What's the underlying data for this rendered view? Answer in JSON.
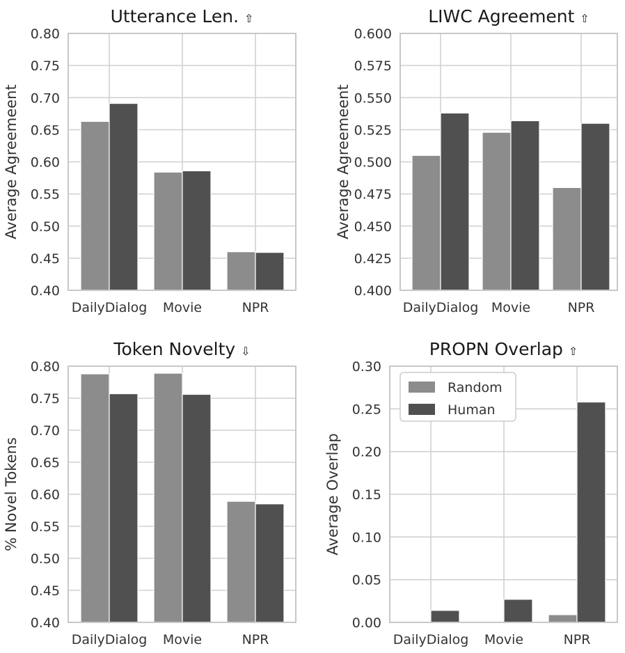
{
  "colors": {
    "random": "#8c8c8c",
    "human": "#505050",
    "grid": "#d0d0d0",
    "frame": "#c8c8c8"
  },
  "legend": {
    "items": [
      {
        "name": "Random",
        "color": "#8c8c8c"
      },
      {
        "name": "Human",
        "color": "#505050"
      }
    ],
    "location": "top-left of PROPN Overlap panel"
  },
  "chart_data": [
    {
      "type": "bar",
      "title": "Utterance Len.",
      "arrow": "⇧",
      "ylabel": "Average Agreemeent",
      "ylim": [
        0.4,
        0.8
      ],
      "yticks": [
        "0.40",
        "0.45",
        "0.50",
        "0.55",
        "0.60",
        "0.65",
        "0.70",
        "0.75",
        "0.80"
      ],
      "categories": [
        "DailyDialog",
        "Movie",
        "NPR"
      ],
      "series": [
        {
          "name": "Random",
          "values": [
            0.663,
            0.584,
            0.46
          ]
        },
        {
          "name": "Human",
          "values": [
            0.691,
            0.586,
            0.459
          ]
        }
      ]
    },
    {
      "type": "bar",
      "title": "LIWC Agreement",
      "arrow": "⇧",
      "ylabel": "Average Agreemeent",
      "ylim": [
        0.4,
        0.6
      ],
      "yticks": [
        "0.400",
        "0.425",
        "0.450",
        "0.475",
        "0.500",
        "0.525",
        "0.550",
        "0.575",
        "0.600"
      ],
      "categories": [
        "DailyDialog",
        "Movie",
        "NPR"
      ],
      "series": [
        {
          "name": "Random",
          "values": [
            0.505,
            0.523,
            0.48
          ]
        },
        {
          "name": "Human",
          "values": [
            0.538,
            0.532,
            0.53
          ]
        }
      ]
    },
    {
      "type": "bar",
      "title": "Token Novelty",
      "arrow": "⇩",
      "ylabel": "% Novel Tokens",
      "ylim": [
        0.4,
        0.8
      ],
      "yticks": [
        "0.40",
        "0.45",
        "0.50",
        "0.55",
        "0.60",
        "0.65",
        "0.70",
        "0.75",
        "0.80"
      ],
      "categories": [
        "DailyDialog",
        "Movie",
        "NPR"
      ],
      "series": [
        {
          "name": "Random",
          "values": [
            0.788,
            0.789,
            0.589
          ]
        },
        {
          "name": "Human",
          "values": [
            0.757,
            0.756,
            0.585
          ]
        }
      ]
    },
    {
      "type": "bar",
      "title": "PROPN Overlap",
      "arrow": "⇧",
      "ylabel": "Average Overlap",
      "ylim": [
        0.0,
        0.3
      ],
      "yticks": [
        "0.00",
        "0.05",
        "0.10",
        "0.15",
        "0.20",
        "0.25",
        "0.30"
      ],
      "categories": [
        "DailyDialog",
        "Movie",
        "NPR"
      ],
      "series": [
        {
          "name": "Random",
          "values": [
            0.0,
            0.0,
            0.009
          ]
        },
        {
          "name": "Human",
          "values": [
            0.014,
            0.027,
            0.258
          ]
        }
      ],
      "legend": true
    }
  ]
}
